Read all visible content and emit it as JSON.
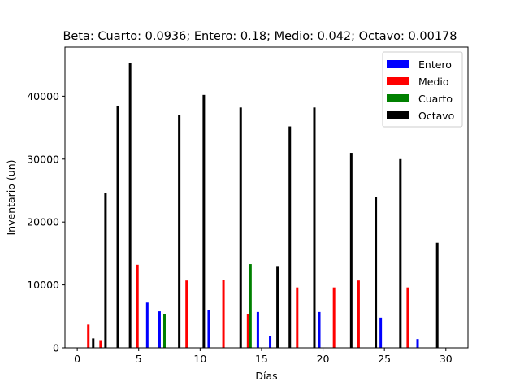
{
  "chart_data": {
    "type": "bar",
    "title": "Beta: Cuarto: 0.0936; Entero: 0.18; Medio: 0.042; Octavo: 0.00178",
    "xlabel": "Días",
    "ylabel": "Inventario (un)",
    "xlim": [
      -1,
      31.8
    ],
    "ylim": [
      0,
      47800
    ],
    "xticks": [
      0,
      5,
      10,
      15,
      20,
      25,
      30
    ],
    "yticks": [
      0,
      10000,
      20000,
      30000,
      40000
    ],
    "grid": false,
    "legend_position": "top-right",
    "series": [
      {
        "name": "Entero",
        "color": "#0000ff",
        "points": [
          {
            "x": 5.7,
            "y": 7200
          },
          {
            "x": 6.7,
            "y": 5800
          },
          {
            "x": 10.7,
            "y": 6000
          },
          {
            "x": 14.7,
            "y": 5700
          },
          {
            "x": 15.7,
            "y": 1900
          },
          {
            "x": 19.7,
            "y": 5700
          },
          {
            "x": 24.7,
            "y": 4800
          },
          {
            "x": 27.7,
            "y": 1400
          }
        ]
      },
      {
        "name": "Medio",
        "color": "#ff0000",
        "points": [
          {
            "x": 0.9,
            "y": 3700
          },
          {
            "x": 1.9,
            "y": 1100
          },
          {
            "x": 4.9,
            "y": 13200
          },
          {
            "x": 8.9,
            "y": 10700
          },
          {
            "x": 11.9,
            "y": 10800
          },
          {
            "x": 13.9,
            "y": 5400
          },
          {
            "x": 17.9,
            "y": 9600
          },
          {
            "x": 20.9,
            "y": 9600
          },
          {
            "x": 22.9,
            "y": 10700
          },
          {
            "x": 26.9,
            "y": 9600
          }
        ]
      },
      {
        "name": "Cuarto",
        "color": "#008000",
        "points": [
          {
            "x": 7.1,
            "y": 5400
          },
          {
            "x": 14.1,
            "y": 13300
          }
        ]
      },
      {
        "name": "Octavo",
        "color": "#000000",
        "points": [
          {
            "x": 1.3,
            "y": 1500
          },
          {
            "x": 2.3,
            "y": 24600
          },
          {
            "x": 3.3,
            "y": 38500
          },
          {
            "x": 4.3,
            "y": 45300
          },
          {
            "x": 8.3,
            "y": 37000
          },
          {
            "x": 10.3,
            "y": 40200
          },
          {
            "x": 13.3,
            "y": 38200
          },
          {
            "x": 16.3,
            "y": 13000
          },
          {
            "x": 17.3,
            "y": 35200
          },
          {
            "x": 19.3,
            "y": 38200
          },
          {
            "x": 22.3,
            "y": 31000
          },
          {
            "x": 24.3,
            "y": 24000
          },
          {
            "x": 26.3,
            "y": 30000
          },
          {
            "x": 29.3,
            "y": 16700
          }
        ]
      }
    ]
  }
}
